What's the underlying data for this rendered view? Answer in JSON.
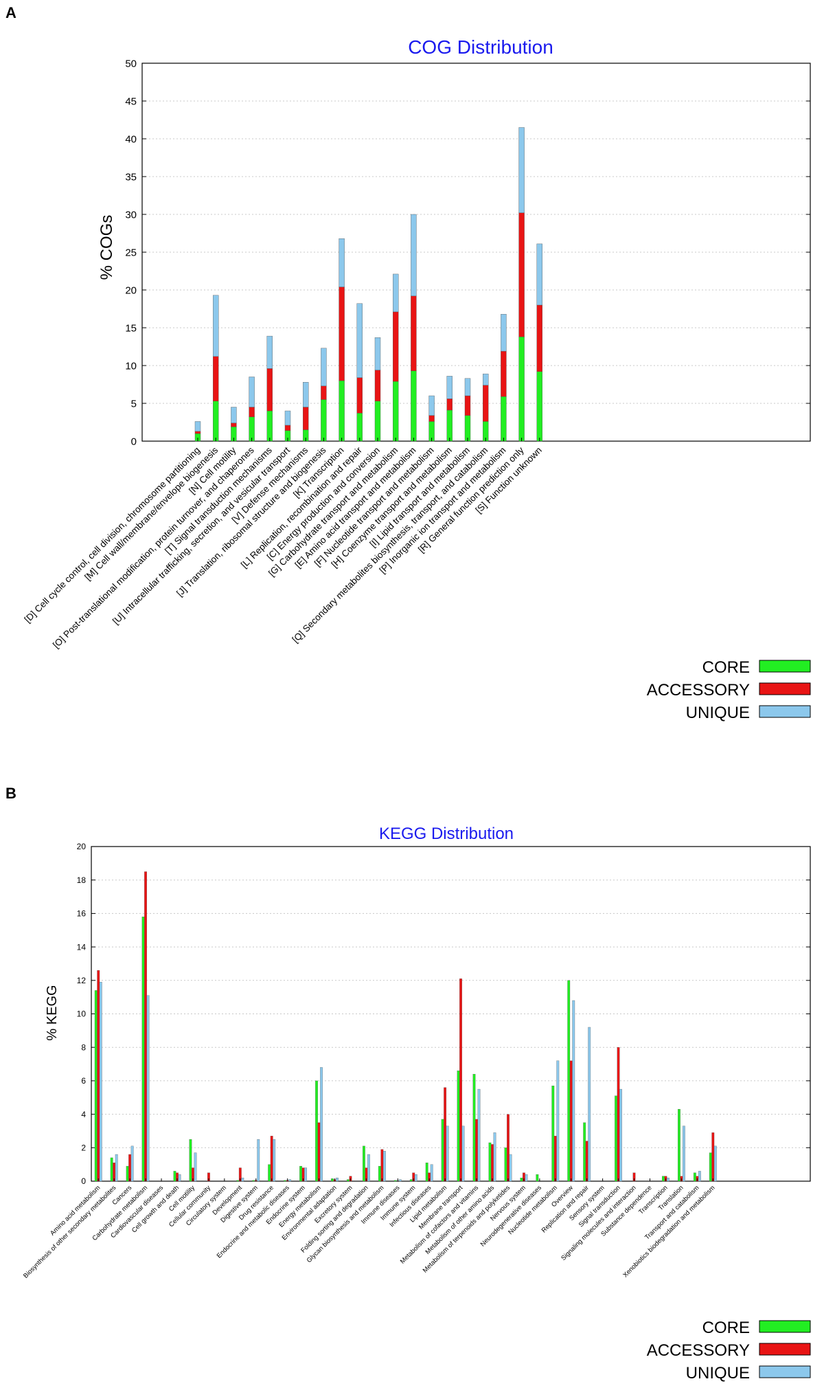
{
  "panels": [
    {
      "label": "A"
    },
    {
      "label": "B"
    }
  ],
  "legend": [
    "CORE",
    "ACCESSORY",
    "UNIQUE"
  ],
  "colors": {
    "core": "#22ee22",
    "accessory": "#e81414",
    "unique": "#8cc8ec",
    "title": "#1a1aee",
    "grid": "#c8c8c8"
  },
  "chart_data": [
    {
      "type": "bar",
      "stacked": true,
      "title": "COG Distribution",
      "ylabel": "% COGs",
      "xlabel": "",
      "ylim": [
        0,
        50
      ],
      "yticks": [
        0,
        5,
        10,
        15,
        20,
        25,
        30,
        35,
        40,
        45,
        50
      ],
      "grid": true,
      "legend_position": "bottom-right",
      "categories": [
        "[D] Cell cycle control, cell division, chromosome partitioning",
        "[M] Cell wall/membrane/envelope biogenesis",
        "[N] Cell motility",
        "[O] Post-translational modification, protein turnover, and chaperones",
        "[T] Signal transduction mechanisms",
        "[U] Intracellular trafficking, secretion, and vesicular transport",
        "[V] Defense mechanisms",
        "[J] Translation, ribosomal structure and biogenesis",
        "[K] Transcription",
        "[L] Replication, recombination and repair",
        "[C] Energy production and conversion",
        "[G] Carbohydrate transport and metabolism",
        "[E] Amino acid transport and metabolism",
        "[F] Nucleotide transport and metabolism",
        "[H] Coenzyme transport and metabolism",
        "[I] Lipid transport and metabolism",
        "[Q] Secondary metabolites biosynthesis, transport, and catabolism",
        "[P] Inorganic ion transport and metabolism",
        "[R] General function prediction only",
        "[S] Function unknown"
      ],
      "series": [
        {
          "name": "CORE",
          "values": [
            1.0,
            5.3,
            1.9,
            3.2,
            4.0,
            1.4,
            1.5,
            5.5,
            8.0,
            3.7,
            5.3,
            7.9,
            9.3,
            2.6,
            4.1,
            3.4,
            2.6,
            5.9,
            13.8,
            9.2
          ]
        },
        {
          "name": "ACCESSORY",
          "values": [
            0.3,
            5.9,
            0.5,
            1.3,
            5.6,
            0.7,
            3.0,
            1.8,
            12.4,
            4.7,
            4.1,
            9.2,
            9.9,
            0.8,
            1.5,
            2.6,
            4.8,
            6.0,
            16.4,
            8.8
          ]
        },
        {
          "name": "UNIQUE",
          "values": [
            1.3,
            8.1,
            2.1,
            4.0,
            4.3,
            1.9,
            3.3,
            5.0,
            6.4,
            9.8,
            4.3,
            5.0,
            10.8,
            2.6,
            3.0,
            2.3,
            1.5,
            4.9,
            11.3,
            8.1
          ]
        }
      ]
    },
    {
      "type": "bar",
      "stacked": false,
      "title": "KEGG Distribution",
      "ylabel": "% KEGG",
      "xlabel": "",
      "ylim": [
        0,
        20
      ],
      "yticks": [
        0,
        2,
        4,
        6,
        8,
        10,
        12,
        14,
        16,
        18,
        20
      ],
      "grid": true,
      "legend_position": "bottom-right",
      "categories": [
        "Amino acid metabolism",
        "Biosynthesis of other secondary metabolites",
        "Cancers",
        "Carbohydrate metabolism",
        "Cardiovascular diseases",
        "Cell growth and death",
        "Cell motility",
        "Cellular community",
        "Circulatory system",
        "Development",
        "Digestive system",
        "Drug resistance",
        "Endocrine and metabolic diseases",
        "Endocrine system",
        "Energy metabolism",
        "Environmental adaptation",
        "Excretory system",
        "Folding sorting and degradation",
        "Glycan biosynthesis and metabolism",
        "Immune diseases",
        "Immune system",
        "Infectious diseases",
        "Lipid metabolism",
        "Membrane transport",
        "Metabolism of cofactors and vitamins",
        "Metabolism of other amino acids",
        "Metabolism of terpenoids and polyketides",
        "Nervous system",
        "Neurodegenerative diseases",
        "Nucleotide metabolism",
        "Overview",
        "Replication and repair",
        "Sensory system",
        "Signal transduction",
        "Signaling molecules and interaction",
        "Substance dependence",
        "Transcription",
        "Translation",
        "Transport and catabolism",
        "Xenobiotics biodegradation and metabolism"
      ],
      "series": [
        {
          "name": "CORE",
          "values": [
            11.4,
            1.4,
            0.9,
            15.8,
            0,
            0.6,
            2.5,
            0,
            0,
            0.05,
            0.05,
            1.0,
            0.05,
            0.9,
            6.0,
            0.15,
            0.1,
            2.1,
            0.9,
            0.05,
            0.1,
            1.1,
            3.7,
            6.6,
            6.4,
            2.3,
            2.0,
            0.2,
            0.4,
            5.7,
            12.0,
            3.5,
            0,
            5.1,
            0,
            0,
            0.3,
            4.3,
            0.5,
            1.7
          ]
        },
        {
          "name": "ACCESSORY",
          "values": [
            12.6,
            1.1,
            1.6,
            18.5,
            0,
            0.5,
            0.8,
            0.5,
            0,
            0.8,
            0.05,
            2.7,
            0.05,
            0.8,
            3.5,
            0.1,
            0.3,
            0.8,
            1.9,
            0,
            0.5,
            0.5,
            5.6,
            12.1,
            3.7,
            2.2,
            4.0,
            0.5,
            0,
            2.7,
            7.2,
            2.4,
            0,
            8.0,
            0.5,
            0,
            0.3,
            0.3,
            0.3,
            2.9
          ]
        },
        {
          "name": "UNIQUE",
          "values": [
            11.9,
            1.6,
            2.1,
            11.1,
            0,
            0.4,
            1.7,
            0,
            0,
            0.2,
            2.5,
            2.5,
            0.1,
            0.8,
            6.8,
            0.2,
            0,
            1.6,
            1.8,
            0.1,
            0.4,
            1.0,
            3.3,
            3.3,
            5.5,
            2.9,
            1.6,
            0.4,
            0,
            7.2,
            10.8,
            9.2,
            0,
            5.5,
            0,
            0,
            0.2,
            3.3,
            0.6,
            2.1
          ]
        }
      ]
    }
  ]
}
